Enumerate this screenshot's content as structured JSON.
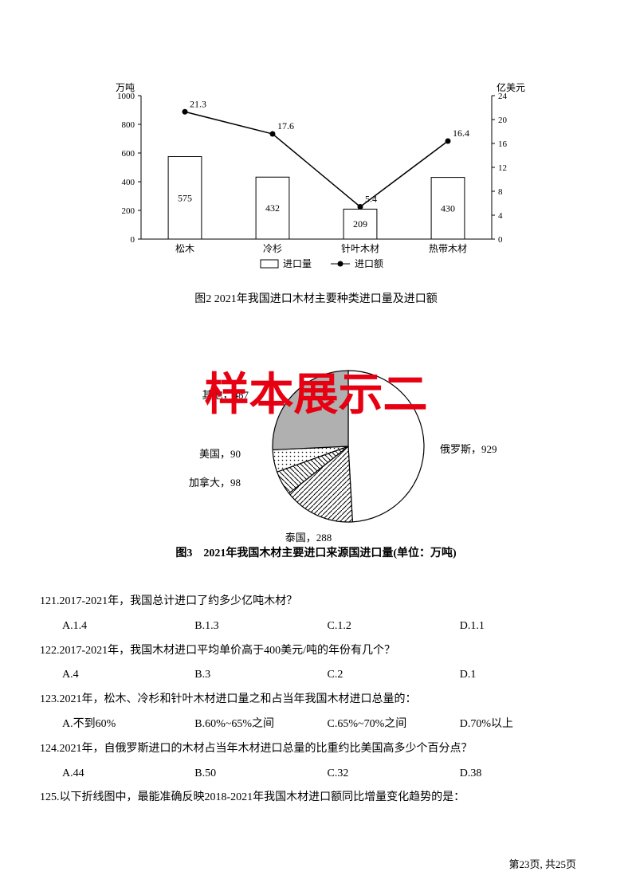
{
  "chart1": {
    "type": "bar+line",
    "y1_label": "万吨",
    "y2_label": "亿美元",
    "categories": [
      "松木",
      "冷杉",
      "针叶木材",
      "热带木材"
    ],
    "bar_values": [
      575,
      432,
      209,
      430
    ],
    "line_values": [
      21.3,
      17.6,
      5.4,
      16.4
    ],
    "y1_lim": [
      0,
      1000
    ],
    "y1_step": 200,
    "y2_lim": [
      0,
      24
    ],
    "y2_step": 4,
    "bar_fill": "#ffffff",
    "bar_stroke": "#000000",
    "line_color": "#000000",
    "marker": "circle",
    "grid_color": "#000000",
    "legend_bar": "进口量",
    "legend_line": "进口额",
    "caption": "图2 2021年我国进口木材主要种类进口量及进口额"
  },
  "chart2": {
    "type": "pie",
    "slices": [
      {
        "label": "俄罗斯，929",
        "value": 929,
        "fill": "#ffffff",
        "pattern": "none"
      },
      {
        "label": "泰国，288",
        "value": 288,
        "fill": "#888888",
        "pattern": "diag"
      },
      {
        "label": "加拿大，98",
        "value": 98,
        "fill": "#ffffff",
        "pattern": "diag2"
      },
      {
        "label": "美国，90",
        "value": 90,
        "fill": "#ffffff",
        "pattern": "dots"
      },
      {
        "label": "其他，487",
        "value": 487,
        "fill": "#b0b0b0",
        "pattern": "none"
      }
    ],
    "stroke": "#000000",
    "caption": "图3　2021年我国木材主要进口来源国进口量(单位：万吨)"
  },
  "watermark": "样本展示二",
  "questions": [
    {
      "q": "121.2017-2021年，我国总计进口了约多少亿吨木材？",
      "opts": [
        "A.1.4",
        "B.1.3",
        "C.1.2",
        "D.1.1"
      ]
    },
    {
      "q": "122.2017-2021年，我国木材进口平均单价高于400美元/吨的年份有几个？",
      "opts": [
        "A.4",
        "B.3",
        "C.2",
        "D.1"
      ]
    },
    {
      "q": "123.2021年，松木、冷杉和针叶木材进口量之和占当年我国木材进口总量的：",
      "opts": [
        "A.不到60%",
        "B.60%~65%之间",
        "C.65%~70%之间",
        "D.70%以上"
      ]
    },
    {
      "q": "124.2021年，自俄罗斯进口的木材占当年木材进口总量的比重约比美国高多少个百分点？",
      "opts": [
        "A.44",
        "B.50",
        "C.32",
        "D.38"
      ]
    },
    {
      "q": "125.以下折线图中，最能准确反映2018-2021年我国木材进口额同比增量变化趋势的是：",
      "opts": []
    }
  ],
  "footer": "第23页, 共25页"
}
